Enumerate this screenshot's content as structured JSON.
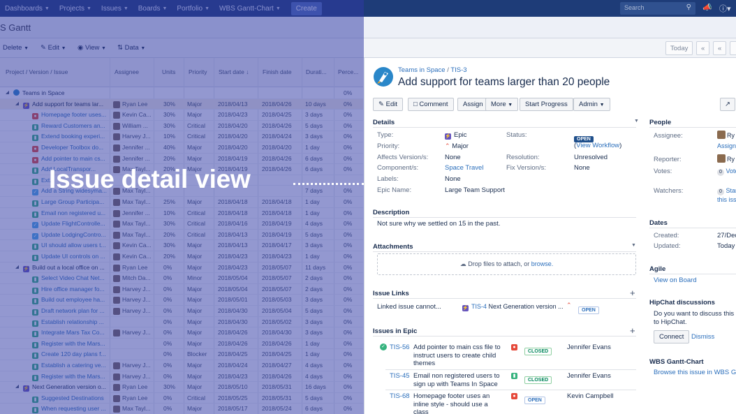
{
  "topnav": {
    "items": [
      "Dashboards",
      "Projects",
      "Issues",
      "Boards",
      "Portfolio",
      "WBS Gantt-Chart"
    ],
    "create": "Create",
    "search_placeholder": "Search"
  },
  "page": {
    "title": "S Gantt"
  },
  "toolbar": {
    "delete": "Delete",
    "edit": "Edit",
    "view": "View",
    "data": "Data",
    "today": "Today",
    "prev2": "«",
    "prev": "«"
  },
  "gantt": {
    "columns": [
      "Project / Version / Issue",
      "Assignee",
      "Units",
      "Priority",
      "Start date",
      "Finish date",
      "Durati...",
      "Perce..."
    ],
    "rows": [
      {
        "issue": "Teams in Space",
        "assignee": "",
        "units": "",
        "priority": "",
        "start": "",
        "finish": "",
        "duration": "",
        "percent": "0%",
        "kind": "project",
        "indent": 0
      },
      {
        "issue": "Add support for teams lar...",
        "assignee": "Ryan Lee",
        "units": "30%",
        "priority": "Major",
        "start": "2018/04/13",
        "finish": "2018/04/26",
        "duration": "10 days",
        "percent": "0%",
        "kind": "epic",
        "indent": 1
      },
      {
        "issue": "Homepage footer uses...",
        "assignee": "Kevin Ca...",
        "units": "30%",
        "priority": "Major",
        "start": "2018/04/23",
        "finish": "2018/04/25",
        "duration": "3 days",
        "percent": "0%",
        "kind": "bug",
        "indent": 2
      },
      {
        "issue": "Reward Customers an...",
        "assignee": "William ...",
        "units": "30%",
        "priority": "Critical",
        "start": "2018/04/20",
        "finish": "2018/04/26",
        "duration": "5 days",
        "percent": "0%",
        "kind": "story",
        "indent": 2
      },
      {
        "issue": "Extend booking experi...",
        "assignee": "Harvey J...",
        "units": "10%",
        "priority": "Critical",
        "start": "2018/04/20",
        "finish": "2018/04/24",
        "duration": "3 days",
        "percent": "0%",
        "kind": "story",
        "indent": 2
      },
      {
        "issue": "Developer Toolbox do...",
        "assignee": "Jennifer ...",
        "units": "40%",
        "priority": "Major",
        "start": "2018/04/20",
        "finish": "2018/04/20",
        "duration": "1 day",
        "percent": "0%",
        "kind": "bug",
        "indent": 2
      },
      {
        "issue": "Add pointer to main cs...",
        "assignee": "Jennifer ...",
        "units": "20%",
        "priority": "Major",
        "start": "2018/04/19",
        "finish": "2018/04/26",
        "duration": "6 days",
        "percent": "0%",
        "kind": "bug",
        "indent": 2
      },
      {
        "issue": "Add LocalTranspor...",
        "assignee": "Max Tayl...",
        "units": "20%",
        "priority": "Major",
        "start": "2018/04/19",
        "finish": "2018/04/26",
        "duration": "6 days",
        "percent": "0%",
        "kind": "story",
        "indent": 2
      },
      {
        "issue": "Ext...",
        "assignee": "",
        "units": "",
        "priority": "",
        "start": "",
        "finish": "",
        "duration": "",
        "percent": "",
        "kind": "story",
        "indent": 2
      },
      {
        "issue": "Add a String widesyma...",
        "assignee": "Max Tayl...",
        "units": "",
        "priority": "",
        "start": "",
        "finish": "",
        "duration": "7 days",
        "percent": "0%",
        "kind": "task",
        "indent": 2
      },
      {
        "issue": "Large Group Participa...",
        "assignee": "Max Tayl...",
        "units": "25%",
        "priority": "Major",
        "start": "2018/04/18",
        "finish": "2018/04/18",
        "duration": "1 day",
        "percent": "0%",
        "kind": "story",
        "indent": 2
      },
      {
        "issue": "Email non registered u...",
        "assignee": "Jennifer ...",
        "units": "10%",
        "priority": "Critical",
        "start": "2018/04/18",
        "finish": "2018/04/18",
        "duration": "1 day",
        "percent": "0%",
        "kind": "story",
        "indent": 2
      },
      {
        "issue": "Update FlightControlle...",
        "assignee": "Max Tayl...",
        "units": "30%",
        "priority": "Critical",
        "start": "2018/04/16",
        "finish": "2018/04/19",
        "duration": "4 days",
        "percent": "0%",
        "kind": "task",
        "indent": 2
      },
      {
        "issue": "Update LodgingContro...",
        "assignee": "Max Tayl...",
        "units": "20%",
        "priority": "Critical",
        "start": "2018/04/13",
        "finish": "2018/04/19",
        "duration": "5 days",
        "percent": "0%",
        "kind": "task",
        "indent": 2
      },
      {
        "issue": "UI should allow users t...",
        "assignee": "Kevin Ca...",
        "units": "30%",
        "priority": "Major",
        "start": "2018/04/13",
        "finish": "2018/04/17",
        "duration": "3 days",
        "percent": "0%",
        "kind": "story",
        "indent": 2
      },
      {
        "issue": "Update UI controls on ...",
        "assignee": "Kevin Ca...",
        "units": "20%",
        "priority": "Major",
        "start": "2018/04/23",
        "finish": "2018/04/23",
        "duration": "1 day",
        "percent": "0%",
        "kind": "story",
        "indent": 2
      },
      {
        "issue": "Build out a local office on ...",
        "assignee": "Ryan Lee",
        "units": "0%",
        "priority": "Major",
        "start": "2018/04/23",
        "finish": "2018/05/07",
        "duration": "11 days",
        "percent": "0%",
        "kind": "epic",
        "indent": 1
      },
      {
        "issue": "Select Video Chat Net...",
        "assignee": "Mitch Da...",
        "units": "0%",
        "priority": "Minor",
        "start": "2018/05/04",
        "finish": "2018/05/07",
        "duration": "2 days",
        "percent": "0%",
        "kind": "story",
        "indent": 2
      },
      {
        "issue": "Hire office manager fo...",
        "assignee": "Harvey J...",
        "units": "0%",
        "priority": "Major",
        "start": "2018/05/04",
        "finish": "2018/05/07",
        "duration": "2 days",
        "percent": "0%",
        "kind": "story",
        "indent": 2
      },
      {
        "issue": "Build out employee ha...",
        "assignee": "Harvey J...",
        "units": "0%",
        "priority": "Major",
        "start": "2018/05/01",
        "finish": "2018/05/03",
        "duration": "3 days",
        "percent": "0%",
        "kind": "story",
        "indent": 2
      },
      {
        "issue": "Draft network plan for ...",
        "assignee": "Harvey J...",
        "units": "0%",
        "priority": "Major",
        "start": "2018/04/30",
        "finish": "2018/05/04",
        "duration": "5 days",
        "percent": "0%",
        "kind": "story",
        "indent": 2
      },
      {
        "issue": "Establish relationship ...",
        "assignee": "",
        "units": "0%",
        "priority": "Major",
        "start": "2018/04/30",
        "finish": "2018/05/02",
        "duration": "3 days",
        "percent": "0%",
        "kind": "story",
        "indent": 2
      },
      {
        "issue": "Integrate Mars Tax Co...",
        "assignee": "Harvey J...",
        "units": "0%",
        "priority": "Major",
        "start": "2018/04/26",
        "finish": "2018/04/30",
        "duration": "3 days",
        "percent": "0%",
        "kind": "story",
        "indent": 2
      },
      {
        "issue": "Register with the Mars...",
        "assignee": "",
        "units": "0%",
        "priority": "Major",
        "start": "2018/04/26",
        "finish": "2018/04/26",
        "duration": "1 day",
        "percent": "0%",
        "kind": "story",
        "indent": 2
      },
      {
        "issue": "Create 120 day plans f...",
        "assignee": "",
        "units": "0%",
        "priority": "Blocker",
        "start": "2018/04/25",
        "finish": "2018/04/25",
        "duration": "1 day",
        "percent": "0%",
        "kind": "story",
        "indent": 2
      },
      {
        "issue": "Establish a catering ve...",
        "assignee": "Harvey J...",
        "units": "0%",
        "priority": "Major",
        "start": "2018/04/24",
        "finish": "2018/04/27",
        "duration": "4 days",
        "percent": "0%",
        "kind": "story",
        "indent": 2
      },
      {
        "issue": "Register with the Mars...",
        "assignee": "Harvey J...",
        "units": "0%",
        "priority": "Major",
        "start": "2018/04/23",
        "finish": "2018/04/26",
        "duration": "4 days",
        "percent": "0%",
        "kind": "story",
        "indent": 2
      },
      {
        "issue": "Next Generation version o...",
        "assignee": "Ryan Lee",
        "units": "30%",
        "priority": "Major",
        "start": "2018/05/10",
        "finish": "2018/05/31",
        "duration": "16 days",
        "percent": "0%",
        "kind": "epic",
        "indent": 1
      },
      {
        "issue": "Suggested Destinations",
        "assignee": "Ryan Lee",
        "units": "0%",
        "priority": "Critical",
        "start": "2018/05/25",
        "finish": "2018/05/31",
        "duration": "5 days",
        "percent": "0%",
        "kind": "story",
        "indent": 2
      },
      {
        "issue": "When requesting user ...",
        "assignee": "Max Tayl...",
        "units": "0%",
        "priority": "Major",
        "start": "2018/05/17",
        "finish": "2018/05/24",
        "duration": "6 days",
        "percent": "0%",
        "kind": "story",
        "indent": 2
      }
    ]
  },
  "overlay": {
    "text": "Issue detail view"
  },
  "issue": {
    "project": "Teams in Space",
    "key": "TIS-3",
    "title": "Add support for teams larger than 20 people",
    "buttons": {
      "edit": "Edit",
      "comment": "Comment",
      "assign": "Assign",
      "more": "More",
      "start_progress": "Start Progress",
      "admin": "Admin"
    },
    "details": {
      "heading": "Details",
      "type_label": "Type:",
      "type": "Epic",
      "priority_label": "Priority:",
      "priority": "Major",
      "affects_label": "Affects Version/s:",
      "affects": "None",
      "components_label": "Component/s:",
      "components": "Space Travel",
      "labels_label": "Labels:",
      "labels": "None",
      "epic_name_label": "Epic Name:",
      "epic_name": "Large Team Support",
      "status_label": "Status:",
      "status": "OPEN",
      "view_workflow": "View Workflow",
      "resolution_label": "Resolution:",
      "resolution": "Unresolved",
      "fix_label": "Fix Version/s:",
      "fix": "None"
    },
    "description": {
      "heading": "Description",
      "text": "Not sure why we settled on 15 in the past."
    },
    "attachments": {
      "heading": "Attachments",
      "drop_text": "Drop files to attach, or",
      "browse": "browse."
    },
    "issue_links": {
      "heading": "Issue Links",
      "relation": "Linked issue cannot...",
      "key": "TIS-4",
      "summary": "Next Generation version ...",
      "status": "OPEN"
    },
    "issues_in_epic": {
      "heading": "Issues in Epic",
      "items": [
        {
          "key": "TIS-56",
          "summary": "Add pointer to main css file to instruct users to create child themes",
          "status": "CLOSED",
          "assignee": "Jennifer Evans"
        },
        {
          "key": "TIS-45",
          "summary": "Email non registered users to sign up with Teams In Space",
          "status": "CLOSED",
          "assignee": "Jennifer Evans"
        },
        {
          "key": "TIS-68",
          "summary": "Homepage footer uses an inline style - should use a class",
          "status": "OPEN",
          "assignee": "Kevin Campbell"
        }
      ]
    }
  },
  "side": {
    "people": {
      "heading": "People",
      "assignee_label": "Assignee:",
      "assignee": "Ry",
      "assign_link": "Assign",
      "reporter_label": "Reporter:",
      "reporter": "Ry",
      "votes_label": "Votes:",
      "votes_count": "0",
      "votes_link": "Vote",
      "watchers_label": "Watchers:",
      "watchers_count": "0",
      "watchers_link1": "Star",
      "watchers_link2": "this iss"
    },
    "dates": {
      "heading": "Dates",
      "created_label": "Created:",
      "created": "27/Dec",
      "updated_label": "Updated:",
      "updated": "Today"
    },
    "agile": {
      "heading": "Agile",
      "link": "View on Board"
    },
    "hipchat": {
      "heading": "HipChat discussions",
      "text1": "Do you want to discuss this is",
      "text2": "to HipChat.",
      "connect": "Connect",
      "dismiss": "Dismiss"
    },
    "wbs": {
      "heading": "WBS Gantt-Chart",
      "link": "Browse this issue in WBS Gan"
    }
  },
  "colors": {
    "nav": "#1e3c78",
    "overlay": "#303aa5",
    "link": "#2a6ebb",
    "epic": "#6554c0",
    "story": "#36b37e",
    "bug": "#e5493a",
    "task": "#4bade8"
  }
}
